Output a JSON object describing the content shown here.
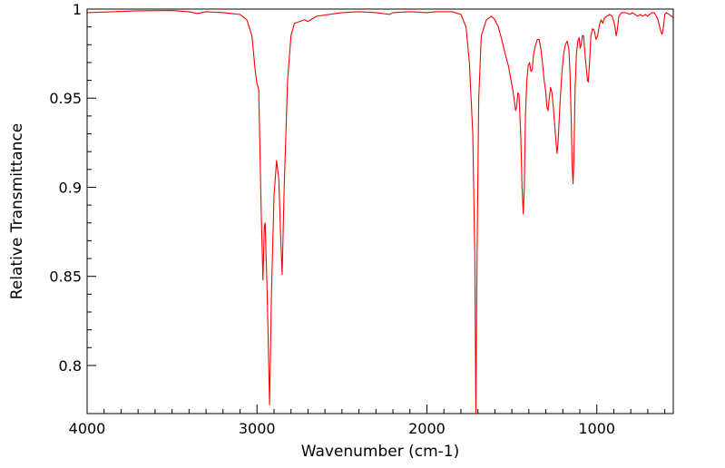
{
  "chart_data": {
    "type": "line",
    "xlabel": "Wavenumber (cm-1)",
    "ylabel": "Relative Transmittance",
    "xlim": [
      4000,
      550
    ],
    "ylim": [
      0.773,
      1.0
    ],
    "x_reversed": true,
    "x_ticks": [
      4000,
      3000,
      2000,
      1000
    ],
    "x_tick_labels": [
      "4000",
      "3000",
      "2000",
      "1000"
    ],
    "y_ticks": [
      1.0,
      0.95,
      0.9,
      0.85,
      0.8
    ],
    "y_tick_labels": [
      "1",
      "0.95",
      "0.9",
      "0.85",
      "0.8"
    ],
    "grid": false,
    "line_color": "#ff0000",
    "series": [
      {
        "points": [
          [
            4000,
            0.998
          ],
          [
            3700,
            0.999
          ],
          [
            3500,
            0.9992
          ],
          [
            3400,
            0.9985
          ],
          [
            3350,
            0.9975
          ],
          [
            3300,
            0.9985
          ],
          [
            3200,
            0.998
          ],
          [
            3100,
            0.997
          ],
          [
            3060,
            0.994
          ],
          [
            3030,
            0.985
          ],
          [
            3010,
            0.965
          ],
          [
            3000,
            0.958
          ],
          [
            2990,
            0.955
          ],
          [
            2975,
            0.885
          ],
          [
            2965,
            0.848
          ],
          [
            2957,
            0.878
          ],
          [
            2952,
            0.88
          ],
          [
            2940,
            0.84
          ],
          [
            2926,
            0.778
          ],
          [
            2915,
            0.84
          ],
          [
            2900,
            0.895
          ],
          [
            2885,
            0.915
          ],
          [
            2872,
            0.905
          ],
          [
            2860,
            0.87
          ],
          [
            2852,
            0.851
          ],
          [
            2840,
            0.9
          ],
          [
            2820,
            0.96
          ],
          [
            2800,
            0.985
          ],
          [
            2780,
            0.992
          ],
          [
            2720,
            0.994
          ],
          [
            2700,
            0.993
          ],
          [
            2650,
            0.996
          ],
          [
            2500,
            0.998
          ],
          [
            2400,
            0.9985
          ],
          [
            2300,
            0.998
          ],
          [
            2220,
            0.997
          ],
          [
            2200,
            0.998
          ],
          [
            2100,
            0.9985
          ],
          [
            2000,
            0.998
          ],
          [
            1950,
            0.9985
          ],
          [
            1850,
            0.9985
          ],
          [
            1800,
            0.997
          ],
          [
            1770,
            0.99
          ],
          [
            1750,
            0.97
          ],
          [
            1730,
            0.93
          ],
          [
            1718,
            0.86
          ],
          [
            1712,
            0.773
          ],
          [
            1705,
            0.86
          ],
          [
            1695,
            0.95
          ],
          [
            1680,
            0.985
          ],
          [
            1650,
            0.994
          ],
          [
            1620,
            0.996
          ],
          [
            1600,
            0.994
          ],
          [
            1580,
            0.99
          ],
          [
            1560,
            0.983
          ],
          [
            1540,
            0.975
          ],
          [
            1520,
            0.968
          ],
          [
            1505,
            0.96
          ],
          [
            1495,
            0.955
          ],
          [
            1485,
            0.948
          ],
          [
            1478,
            0.943
          ],
          [
            1472,
            0.945
          ],
          [
            1465,
            0.953
          ],
          [
            1458,
            0.952
          ],
          [
            1448,
            0.93
          ],
          [
            1440,
            0.9
          ],
          [
            1433,
            0.885
          ],
          [
            1427,
            0.9
          ],
          [
            1420,
            0.94
          ],
          [
            1412,
            0.96
          ],
          [
            1404,
            0.968
          ],
          [
            1396,
            0.97
          ],
          [
            1388,
            0.965
          ],
          [
            1380,
            0.966
          ],
          [
            1372,
            0.975
          ],
          [
            1360,
            0.98
          ],
          [
            1350,
            0.983
          ],
          [
            1340,
            0.983
          ],
          [
            1330,
            0.978
          ],
          [
            1320,
            0.97
          ],
          [
            1310,
            0.96
          ],
          [
            1300,
            0.953
          ],
          [
            1294,
            0.945
          ],
          [
            1287,
            0.943
          ],
          [
            1280,
            0.95
          ],
          [
            1272,
            0.956
          ],
          [
            1264,
            0.953
          ],
          [
            1256,
            0.945
          ],
          [
            1248,
            0.935
          ],
          [
            1240,
            0.925
          ],
          [
            1234,
            0.919
          ],
          [
            1228,
            0.925
          ],
          [
            1218,
            0.945
          ],
          [
            1205,
            0.965
          ],
          [
            1195,
            0.975
          ],
          [
            1185,
            0.98
          ],
          [
            1175,
            0.982
          ],
          [
            1165,
            0.978
          ],
          [
            1158,
            0.965
          ],
          [
            1150,
            0.935
          ],
          [
            1145,
            0.912
          ],
          [
            1140,
            0.902
          ],
          [
            1135,
            0.915
          ],
          [
            1128,
            0.955
          ],
          [
            1120,
            0.975
          ],
          [
            1112,
            0.982
          ],
          [
            1104,
            0.984
          ],
          [
            1098,
            0.978
          ],
          [
            1092,
            0.98
          ],
          [
            1085,
            0.985
          ],
          [
            1078,
            0.985
          ],
          [
            1070,
            0.975
          ],
          [
            1063,
            0.968
          ],
          [
            1055,
            0.96
          ],
          [
            1050,
            0.959
          ],
          [
            1043,
            0.97
          ],
          [
            1035,
            0.985
          ],
          [
            1025,
            0.989
          ],
          [
            1015,
            0.988
          ],
          [
            1005,
            0.983
          ],
          [
            995,
            0.985
          ],
          [
            985,
            0.991
          ],
          [
            975,
            0.994
          ],
          [
            965,
            0.992
          ],
          [
            955,
            0.995
          ],
          [
            940,
            0.996
          ],
          [
            925,
            0.997
          ],
          [
            910,
            0.996
          ],
          [
            900,
            0.993
          ],
          [
            893,
            0.99
          ],
          [
            886,
            0.985
          ],
          [
            880,
            0.988
          ],
          [
            870,
            0.996
          ],
          [
            855,
            0.998
          ],
          [
            830,
            0.998
          ],
          [
            805,
            0.997
          ],
          [
            790,
            0.998
          ],
          [
            775,
            0.997
          ],
          [
            760,
            0.996
          ],
          [
            745,
            0.997
          ],
          [
            730,
            0.996
          ],
          [
            715,
            0.997
          ],
          [
            700,
            0.996
          ],
          [
            690,
            0.997
          ],
          [
            675,
            0.998
          ],
          [
            662,
            0.998
          ],
          [
            650,
            0.996
          ],
          [
            640,
            0.994
          ],
          [
            630,
            0.99
          ],
          [
            622,
            0.987
          ],
          [
            615,
            0.986
          ],
          [
            608,
            0.99
          ],
          [
            600,
            0.997
          ],
          [
            590,
            0.998
          ],
          [
            575,
            0.997
          ],
          [
            560,
            0.996
          ],
          [
            550,
            0.995
          ]
        ]
      }
    ]
  }
}
